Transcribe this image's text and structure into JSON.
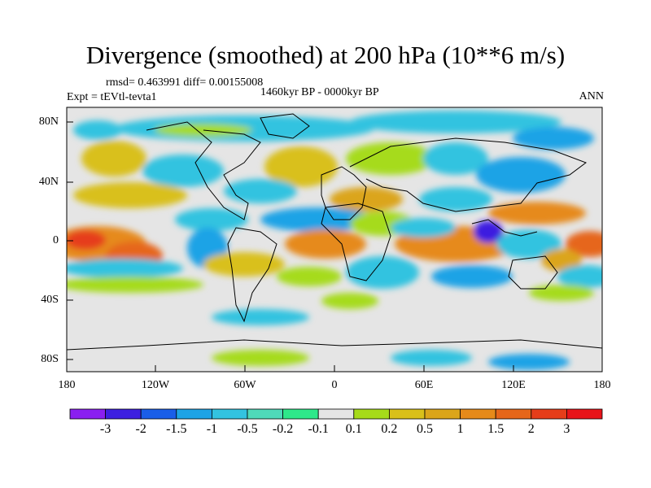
{
  "title": "Divergence (smoothed) at 200 hPa (10**6 m/s)",
  "stats": "rmsd= 0.463991 diff= 0.00155008",
  "experiment": "Expt = tEVtl-tevta1",
  "period": "1460kyr BP - 0000kyr BP",
  "season": "ANN",
  "map": {
    "lat_ticks": [
      "80N",
      "40N",
      "0",
      "40S",
      "80S"
    ],
    "lon_ticks": [
      "180",
      "120W",
      "60W",
      "0",
      "60E",
      "120E",
      "180"
    ]
  },
  "colorbar": {
    "colors": [
      "#8a1ff0",
      "#3d1fe0",
      "#1a5ee8",
      "#1ea3e6",
      "#33c3e0",
      "#4fd9b9",
      "#2ee88a",
      "#e5e5e5",
      "#a6db1a",
      "#d9c01a",
      "#dba51a",
      "#e68a1a",
      "#e6661a",
      "#e63d1a",
      "#e8141a"
    ],
    "labels": [
      "-3",
      "-2",
      "-1.5",
      "-1",
      "-0.5",
      "-0.2",
      "-0.1",
      "0.1",
      "0.2",
      "0.5",
      "1",
      "1.5",
      "2",
      "3"
    ]
  }
}
